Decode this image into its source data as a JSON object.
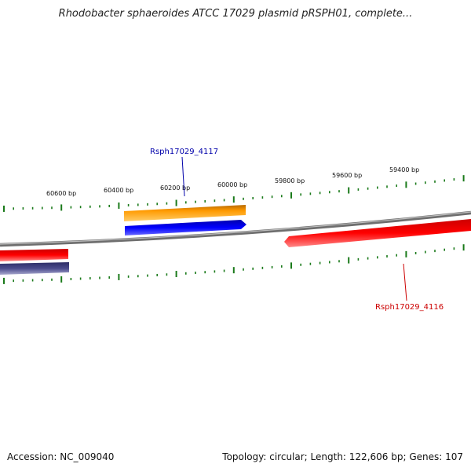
{
  "title": "Rhodobacter sphaeroides ATCC 17029 plasmid pRSPH01, complete...",
  "footer": {
    "accession": "Accession: NC_009040",
    "summary": "Topology: circular; Length: 122,606 bp; Genes: 107"
  },
  "ruler_labels": [
    "60600 bp",
    "60400 bp",
    "60200 bp",
    "60000 bp",
    "59800 bp",
    "59600 bp",
    "59400 bp"
  ],
  "gene_labels": {
    "upper": "Rsph17029_4117",
    "lower": "Rsph17029_4116"
  },
  "colors": {
    "backbone": "#808080",
    "ruler": "#1a7a1a",
    "orange": "#ff9900",
    "blue": "#0000ee",
    "red": "#ee0000",
    "navy": "#4a4a8a",
    "upper_label": "#0000aa",
    "lower_label": "#cc0000"
  }
}
